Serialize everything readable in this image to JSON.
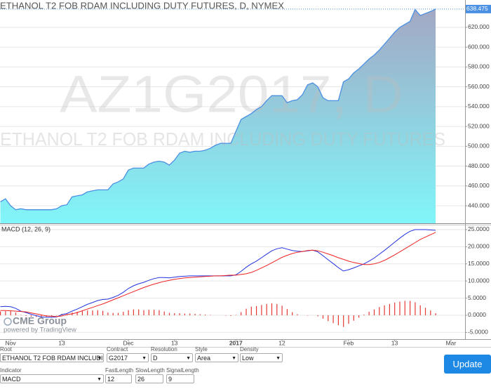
{
  "chart_data": [
    {
      "type": "area",
      "title": "ETHANOL T2 FOB RDAM INCLUDING DUTY FUTURES, D, NYMEX",
      "watermark": "AZ1G2017, D",
      "watermark_subtitle": "ETHANOL T2 FOB RDAM INCLUDING DUTY FUTURES",
      "line_color": "#4a90e2",
      "fill_top": "#a3a8c4",
      "fill_bottom": "#80f6fa",
      "grid": true,
      "ylim": [
        422.3,
        647.6
      ],
      "yticks": [
        {
          "value": 440,
          "label": "440.000"
        },
        {
          "value": 460,
          "label": "460.000"
        },
        {
          "value": 480,
          "label": "480.000"
        },
        {
          "value": 500,
          "label": "500.000"
        },
        {
          "value": 520,
          "label": "520.000"
        },
        {
          "value": 540,
          "label": "540.000"
        },
        {
          "value": 560,
          "label": "560.000"
        },
        {
          "value": 580,
          "label": "580.000"
        },
        {
          "value": 600,
          "label": "600.000"
        },
        {
          "value": 620,
          "label": "620.000"
        }
      ],
      "values": [
        444,
        447,
        440,
        436,
        437,
        436,
        436,
        436,
        436,
        436,
        436,
        437,
        440,
        441,
        449,
        450,
        451,
        454,
        455,
        456,
        456,
        456,
        462,
        464,
        467,
        476,
        478,
        478,
        478,
        482,
        484,
        485,
        484,
        481,
        486,
        493,
        495,
        494,
        495,
        495,
        496,
        498,
        501,
        503,
        503,
        503,
        515,
        527,
        530,
        533,
        537,
        540,
        546,
        551,
        551,
        551,
        544,
        546,
        547,
        552,
        562,
        564,
        560,
        549,
        546,
        546,
        546,
        565,
        568,
        574,
        578,
        583,
        588,
        592,
        597,
        603,
        609,
        615,
        620,
        623,
        626,
        638,
        632,
        634,
        636,
        638.475,
        null,
        null,
        null
      ]
    },
    {
      "type": "line",
      "title": "MACD (12, 26, 9)",
      "grid": true,
      "categories": [
        null,
        null,
        "Nov",
        null,
        null,
        null,
        null,
        null,
        null,
        null,
        null,
        null,
        "13",
        null,
        null,
        null,
        null,
        null,
        null,
        null,
        null,
        null,
        null,
        null,
        null,
        "Dec",
        null,
        null,
        null,
        null,
        null,
        null,
        null,
        null,
        "13",
        null,
        null,
        null,
        null,
        null,
        null,
        null,
        null,
        null,
        null,
        null,
        "2017",
        null,
        null,
        null,
        null,
        null,
        null,
        null,
        null,
        "12",
        null,
        null,
        null,
        null,
        null,
        null,
        null,
        null,
        null,
        null,
        null,
        null,
        "Feb",
        null,
        null,
        null,
        null,
        null,
        null,
        null,
        null,
        "13",
        null,
        null,
        null,
        null,
        null,
        null,
        null,
        null,
        null,
        null,
        "Mar"
      ],
      "ylim": [
        -6.97,
        26.43
      ],
      "yticks": [
        {
          "value": -5,
          "label": "-5.0000"
        },
        {
          "value": 0,
          "label": "0.0000"
        },
        {
          "value": 5,
          "label": "5.0000"
        },
        {
          "value": 10,
          "label": "10.0000"
        },
        {
          "value": 15,
          "label": "15.0000"
        },
        {
          "value": 20,
          "label": "20.0000"
        },
        {
          "value": 25,
          "label": "25.0000"
        }
      ],
      "series": [
        {
          "type": "bar",
          "color": "#e53935",
          "values": [
            1.1,
            1.2,
            1.2,
            0.8,
            0.1,
            -0.2,
            -0.4,
            -0.5,
            -0.6,
            -0.4,
            -0.3,
            -0.1,
            0.4,
            0.3,
            0.8,
            1.0,
            1.2,
            1.4,
            1.4,
            1.5,
            1.3,
            0.8,
            0.7,
            0.7,
            1.0,
            1.5,
            1.7,
            1.7,
            1.5,
            1.6,
            1.6,
            1.5,
            1.1,
            0.7,
            0.6,
            0.6,
            0.5,
            0.5,
            0.4,
            0.3,
            0.2,
            0.1,
            0,
            0,
            -0.1,
            -0.2,
            0.1,
            0.9,
            1.9,
            2.5,
            2.7,
            3.0,
            3.3,
            3.5,
            3.3,
            2.8,
            1.8,
            0.9,
            0.3,
            0,
            -0.1,
            0,
            -0.3,
            -1.0,
            -1.7,
            -2.3,
            -2.9,
            -3.4,
            -2.5,
            -1.6,
            -0.7,
            0.2,
            1.0,
            1.7,
            2.4,
            2.9,
            3.3,
            3.7,
            4.0,
            4.2,
            4.2,
            3.8,
            2.9,
            2.2,
            1.4,
            0.6,
            null,
            null,
            null
          ]
        },
        {
          "type": "line",
          "color": "#2233dd",
          "values": [
            2.5,
            2.6,
            2.5,
            2.0,
            1.2,
            0.8,
            0.3,
            -0.1,
            -0.5,
            -0.6,
            -0.6,
            -0.5,
            0.2,
            0.5,
            1.2,
            1.8,
            2.5,
            3.2,
            3.7,
            4.3,
            4.6,
            4.7,
            5.2,
            5.8,
            6.7,
            7.8,
            8.6,
            9.2,
            9.6,
            10.2,
            10.7,
            11.0,
            11.0,
            10.9,
            11.1,
            11.3,
            11.4,
            11.5,
            11.5,
            11.5,
            11.5,
            11.5,
            11.5,
            11.5,
            11.5,
            11.5,
            11.8,
            12.8,
            14.0,
            15.0,
            15.8,
            16.8,
            17.8,
            18.8,
            19.4,
            19.7,
            19.3,
            18.9,
            18.7,
            18.6,
            18.8,
            19.0,
            18.5,
            17.4,
            16.2,
            15.1,
            13.9,
            12.9,
            13.3,
            13.8,
            14.4,
            15.0,
            15.8,
            16.7,
            17.8,
            18.9,
            20.1,
            21.3,
            22.5,
            23.6,
            24.5,
            25.0,
            25.0,
            25.0,
            24.9,
            24.8,
            null,
            null,
            null
          ]
        },
        {
          "type": "line",
          "color": "#ee2222",
          "values": [
            1.4,
            1.4,
            1.3,
            1.2,
            1.1,
            1.0,
            0.7,
            0.4,
            0.1,
            -0.2,
            -0.3,
            -0.4,
            -0.2,
            0.2,
            0.4,
            0.8,
            1.3,
            1.8,
            2.3,
            2.8,
            3.3,
            3.9,
            4.5,
            5.1,
            5.7,
            6.3,
            6.9,
            7.5,
            8.1,
            8.6,
            9.1,
            9.5,
            9.9,
            10.2,
            10.5,
            10.7,
            10.9,
            11.0,
            11.1,
            11.2,
            11.3,
            11.4,
            11.5,
            11.5,
            11.6,
            11.7,
            11.7,
            11.9,
            12.1,
            12.5,
            13.1,
            13.8,
            14.5,
            15.3,
            16.1,
            16.9,
            17.5,
            18.0,
            18.4,
            18.6,
            18.9,
            19.0,
            18.8,
            18.4,
            17.9,
            17.4,
            16.8,
            16.3,
            15.8,
            15.4,
            15.1,
            14.8,
            14.8,
            15.0,
            15.4,
            16.0,
            16.8,
            17.6,
            18.5,
            19.4,
            20.3,
            21.2,
            22.1,
            22.8,
            23.5,
            24.2,
            null,
            null,
            null
          ]
        }
      ]
    }
  ],
  "branding": {
    "logo": "CME Group",
    "credit": "powered by TradingView"
  },
  "form": {
    "fields": [
      {
        "label": "Root",
        "value": "ETHANOL T2 FOB RDAM INCLUDI"
      },
      {
        "label": "Contract",
        "value": "G2017"
      },
      {
        "label": "Resolution",
        "value": "D"
      },
      {
        "label": "Style",
        "value": "Area"
      },
      {
        "label": "Density",
        "value": "Low"
      },
      {
        "label": "Indicator",
        "value": "MACD"
      },
      {
        "label": "FastLength",
        "value": "12"
      },
      {
        "label": "SlowLength",
        "value": "26"
      },
      {
        "label": "SignalLength",
        "value": "9"
      }
    ],
    "button": "Update"
  }
}
